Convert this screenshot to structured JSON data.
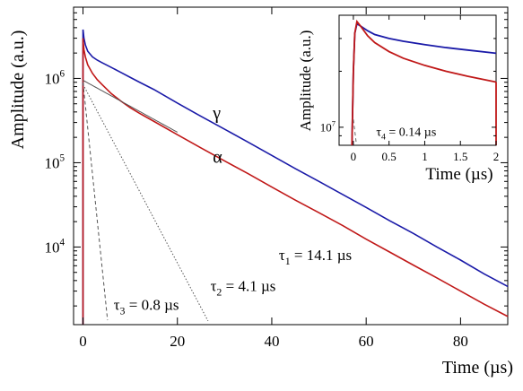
{
  "chart_data": [
    {
      "type": "line",
      "xlabel": "Time (µs)",
      "ylabel": "Amplitude (a.u.)",
      "xlim": [
        -2,
        90
      ],
      "ylim": [
        1200,
        7000000
      ],
      "yscale": "log",
      "x_ticks": [
        0,
        20,
        40,
        60,
        80
      ],
      "x_tick_labels": [
        "0",
        "20",
        "40",
        "60",
        "80"
      ],
      "y_ticks": [
        10000,
        100000,
        1000000
      ],
      "y_tick_labels": [
        {
          "base": "10",
          "exp": "4"
        },
        {
          "base": "10",
          "exp": "5"
        },
        {
          "base": "10",
          "exp": "6"
        }
      ],
      "series": [
        {
          "name": "γ",
          "color": "#1a1aa8",
          "x": [
            0,
            0.05,
            0.2,
            0.5,
            1,
            2,
            3,
            4,
            6,
            8,
            10,
            12,
            15,
            20,
            25,
            30,
            35,
            40,
            45,
            50,
            55,
            60,
            65,
            70,
            75,
            80,
            85,
            90
          ],
          "y": [
            3800000,
            3600000,
            3000000,
            2500000,
            2100000,
            1800000,
            1650000,
            1540000,
            1350000,
            1180000,
            1030000,
            900000,
            740000,
            510000,
            355000,
            250000,
            175000,
            122000,
            85000,
            60000,
            42000,
            29500,
            20500,
            14500,
            10000,
            7000,
            4800,
            3400
          ]
        },
        {
          "name": "α",
          "color": "#c01818",
          "x": [
            0,
            0.05,
            0.2,
            0.5,
            1,
            2,
            3,
            4,
            6,
            8,
            10,
            12,
            15,
            20,
            25,
            30,
            35,
            40,
            45,
            50,
            55,
            60,
            65,
            70,
            75,
            80,
            85,
            90
          ],
          "y": [
            3000000,
            2700000,
            2200000,
            1800000,
            1450000,
            1150000,
            970000,
            850000,
            660000,
            540000,
            450000,
            385000,
            310000,
            215000,
            150000,
            105000,
            74000,
            51500,
            36000,
            25500,
            18000,
            12400,
            8700,
            6100,
            4300,
            3000,
            2100,
            1500
          ]
        }
      ],
      "fits": [
        {
          "kind": "solid",
          "color": "#555555",
          "amplitude": 950000,
          "tau_us": 14.1,
          "x_range": [
            0,
            20
          ]
        },
        {
          "kind": "dotted",
          "color": "#555555",
          "amplitude": 850000,
          "tau_us": 4.1,
          "x_range": [
            0,
            30
          ]
        },
        {
          "kind": "dashed",
          "color": "#555555",
          "amplitude": 900000,
          "tau_us": 0.8,
          "x_range": [
            0,
            6
          ]
        }
      ],
      "annotations": [
        {
          "prefix": "τ",
          "sub": "1",
          "suffix": " = 14.1 µs",
          "x": 41.5,
          "y": 7000
        },
        {
          "prefix": "τ",
          "sub": "2",
          "suffix": " = 4.1 µs",
          "x": 27,
          "y": 3000
        },
        {
          "prefix": "τ",
          "sub": "3",
          "suffix": " = 0.8 µs",
          "x": 6.5,
          "y": 1800
        },
        {
          "text": "γ",
          "x": 27.5,
          "y": 330000
        },
        {
          "text": "α",
          "x": 27.5,
          "y": 100000
        }
      ]
    },
    {
      "type": "line",
      "inset": true,
      "xlabel": "Time (µs)",
      "ylabel": "Amplitude (a.u.)",
      "xlim": [
        -0.2,
        2.0
      ],
      "ylim": [
        8000000,
        40000000
      ],
      "yscale": "log",
      "x_ticks": [
        0,
        0.5,
        1,
        1.5,
        2
      ],
      "x_tick_labels": [
        "0",
        "0.5",
        "1",
        "1.5",
        "2"
      ],
      "y_ticks": [
        10000000
      ],
      "y_tick_labels": [
        {
          "base": "10",
          "exp": "7"
        }
      ],
      "series": [
        {
          "name": "γ",
          "color": "#1a1aa8",
          "x": [
            -0.02,
            0.0,
            0.02,
            0.05,
            0.1,
            0.2,
            0.3,
            0.5,
            0.7,
            1.0,
            1.3,
            1.6,
            2.0
          ],
          "y": [
            8000000,
            20000000,
            32000000,
            36000000,
            35000000,
            33000000,
            31500000,
            30000000,
            29000000,
            27800000,
            26800000,
            26000000,
            25000000
          ]
        },
        {
          "name": "α",
          "color": "#c01818",
          "x": [
            -0.02,
            0.0,
            0.02,
            0.05,
            0.1,
            0.2,
            0.3,
            0.5,
            0.7,
            1.0,
            1.3,
            1.6,
            2.0
          ],
          "y": [
            8000000,
            20000000,
            32000000,
            37000000,
            35000000,
            31000000,
            28500000,
            25500000,
            23500000,
            21500000,
            20000000,
            18800000,
            17500000
          ]
        }
      ],
      "fits": [
        {
          "kind": "dashed",
          "color": "#666666",
          "amplitude": 11000000,
          "tau_us": 0.14,
          "x_range": [
            0,
            0.3
          ]
        }
      ],
      "annotations": [
        {
          "prefix": "τ",
          "sub": "4",
          "suffix": " = 0.14 µs",
          "x": 0.32,
          "y": 9000000
        }
      ]
    }
  ]
}
